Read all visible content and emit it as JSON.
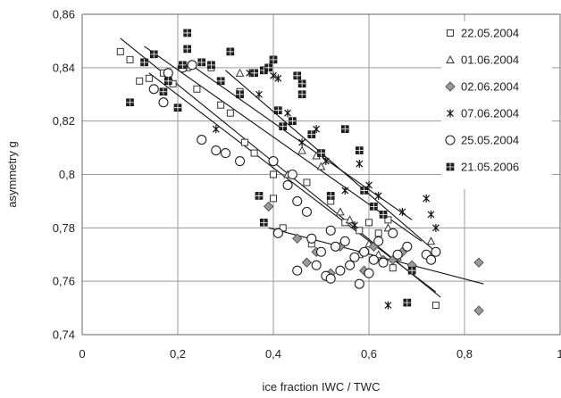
{
  "chart_data": {
    "type": "scatter",
    "xlabel": "ice fraction IWC / TWC",
    "ylabel": "asymmetry g",
    "xlim": [
      0,
      1
    ],
    "ylim": [
      0.74,
      0.86
    ],
    "x_ticks": [
      "0",
      "0,2",
      "0,4",
      "0,6",
      "0,8",
      "1"
    ],
    "y_ticks": [
      "0,74",
      "0,76",
      "0,78",
      "0,8",
      "0,82",
      "0,84",
      "0,86"
    ],
    "grid": true,
    "legend_position": "top-right",
    "series": [
      {
        "name": "22.05.2004",
        "marker": "open-square",
        "points": [
          [
            0.08,
            0.846
          ],
          [
            0.1,
            0.843
          ],
          [
            0.12,
            0.835
          ],
          [
            0.14,
            0.836
          ],
          [
            0.17,
            0.838
          ],
          [
            0.19,
            0.834
          ],
          [
            0.22,
            0.84
          ],
          [
            0.24,
            0.832
          ],
          [
            0.27,
            0.84
          ],
          [
            0.29,
            0.826
          ],
          [
            0.31,
            0.823
          ],
          [
            0.33,
            0.831
          ],
          [
            0.34,
            0.812
          ],
          [
            0.36,
            0.808
          ],
          [
            0.4,
            0.8
          ],
          [
            0.4,
            0.791
          ],
          [
            0.42,
            0.78
          ],
          [
            0.47,
            0.797
          ],
          [
            0.48,
            0.774
          ],
          [
            0.52,
            0.79
          ],
          [
            0.55,
            0.782
          ],
          [
            0.58,
            0.779
          ],
          [
            0.6,
            0.782
          ],
          [
            0.62,
            0.778
          ],
          [
            0.64,
            0.783
          ],
          [
            0.65,
            0.765
          ],
          [
            0.74,
            0.751
          ]
        ],
        "trend": [
          [
            0.08,
            0.851
          ],
          [
            0.75,
            0.754
          ]
        ]
      },
      {
        "name": "01.06.2004",
        "marker": "open-triangle",
        "points": [
          [
            0.33,
            0.838
          ],
          [
            0.43,
            0.8
          ],
          [
            0.46,
            0.809
          ],
          [
            0.49,
            0.807
          ],
          [
            0.5,
            0.803
          ],
          [
            0.54,
            0.786
          ],
          [
            0.56,
            0.783
          ],
          [
            0.58,
            0.77
          ],
          [
            0.6,
            0.774
          ],
          [
            0.62,
            0.77
          ],
          [
            0.64,
            0.78
          ],
          [
            0.66,
            0.769
          ],
          [
            0.73,
            0.775
          ]
        ],
        "trend": [
          [
            0.3,
            0.839
          ],
          [
            0.74,
            0.771
          ]
        ]
      },
      {
        "name": "02.06.2004",
        "marker": "filled-diamond",
        "points": [
          [
            0.39,
            0.788
          ],
          [
            0.45,
            0.776
          ],
          [
            0.47,
            0.767
          ],
          [
            0.49,
            0.771
          ],
          [
            0.52,
            0.763
          ],
          [
            0.54,
            0.773
          ],
          [
            0.56,
            0.766
          ],
          [
            0.59,
            0.764
          ],
          [
            0.61,
            0.773
          ],
          [
            0.63,
            0.768
          ],
          [
            0.65,
            0.768
          ],
          [
            0.67,
            0.771
          ],
          [
            0.69,
            0.766
          ],
          [
            0.83,
            0.767
          ],
          [
            0.83,
            0.749
          ]
        ],
        "trend": [
          [
            0.39,
            0.78
          ],
          [
            0.84,
            0.759
          ]
        ]
      },
      {
        "name": "07.06.2004",
        "marker": "star",
        "points": [
          [
            0.28,
            0.817
          ],
          [
            0.35,
            0.838
          ],
          [
            0.37,
            0.83
          ],
          [
            0.4,
            0.837
          ],
          [
            0.41,
            0.836
          ],
          [
            0.43,
            0.823
          ],
          [
            0.46,
            0.812
          ],
          [
            0.49,
            0.817
          ],
          [
            0.51,
            0.805
          ],
          [
            0.55,
            0.794
          ],
          [
            0.57,
            0.781
          ],
          [
            0.58,
            0.804
          ],
          [
            0.6,
            0.796
          ],
          [
            0.62,
            0.792
          ],
          [
            0.64,
            0.751
          ],
          [
            0.67,
            0.786
          ],
          [
            0.72,
            0.791
          ],
          [
            0.73,
            0.785
          ],
          [
            0.74,
            0.78
          ]
        ],
        "trend": [
          [
            0.22,
            0.842
          ],
          [
            0.69,
            0.783
          ]
        ]
      },
      {
        "name": "25.05.2004",
        "marker": "open-circle",
        "points": [
          [
            0.15,
            0.832
          ],
          [
            0.17,
            0.827
          ],
          [
            0.18,
            0.838
          ],
          [
            0.21,
            0.84
          ],
          [
            0.23,
            0.841
          ],
          [
            0.25,
            0.813
          ],
          [
            0.28,
            0.809
          ],
          [
            0.3,
            0.808
          ],
          [
            0.33,
            0.805
          ],
          [
            0.4,
            0.805
          ],
          [
            0.41,
            0.778
          ],
          [
            0.43,
            0.796
          ],
          [
            0.44,
            0.8
          ],
          [
            0.45,
            0.79
          ],
          [
            0.45,
            0.764
          ],
          [
            0.47,
            0.786
          ],
          [
            0.48,
            0.776
          ],
          [
            0.49,
            0.766
          ],
          [
            0.5,
            0.771
          ],
          [
            0.51,
            0.762
          ],
          [
            0.52,
            0.779
          ],
          [
            0.52,
            0.761
          ],
          [
            0.53,
            0.773
          ],
          [
            0.54,
            0.764
          ],
          [
            0.55,
            0.775
          ],
          [
            0.56,
            0.766
          ],
          [
            0.57,
            0.769
          ],
          [
            0.58,
            0.759
          ],
          [
            0.59,
            0.771
          ],
          [
            0.6,
            0.763
          ],
          [
            0.61,
            0.768
          ],
          [
            0.62,
            0.775
          ],
          [
            0.63,
            0.767
          ],
          [
            0.65,
            0.778
          ],
          [
            0.66,
            0.77
          ],
          [
            0.68,
            0.773
          ],
          [
            0.72,
            0.77
          ],
          [
            0.73,
            0.768
          ],
          [
            0.74,
            0.771
          ]
        ],
        "trend": [
          [
            0.14,
            0.838
          ],
          [
            0.74,
            0.756
          ]
        ]
      },
      {
        "name": "21.05.2006",
        "marker": "filled-square",
        "points": [
          [
            0.1,
            0.827
          ],
          [
            0.13,
            0.842
          ],
          [
            0.15,
            0.845
          ],
          [
            0.17,
            0.831
          ],
          [
            0.18,
            0.835
          ],
          [
            0.2,
            0.825
          ],
          [
            0.21,
            0.841
          ],
          [
            0.22,
            0.853
          ],
          [
            0.22,
            0.847
          ],
          [
            0.25,
            0.842
          ],
          [
            0.27,
            0.841
          ],
          [
            0.29,
            0.835
          ],
          [
            0.31,
            0.846
          ],
          [
            0.33,
            0.83
          ],
          [
            0.36,
            0.838
          ],
          [
            0.38,
            0.839
          ],
          [
            0.39,
            0.84
          ],
          [
            0.4,
            0.843
          ],
          [
            0.41,
            0.824
          ],
          [
            0.42,
            0.818
          ],
          [
            0.44,
            0.82
          ],
          [
            0.45,
            0.837
          ],
          [
            0.46,
            0.834
          ],
          [
            0.46,
            0.83
          ],
          [
            0.48,
            0.815
          ],
          [
            0.5,
            0.808
          ],
          [
            0.52,
            0.792
          ],
          [
            0.55,
            0.817
          ],
          [
            0.58,
            0.809
          ],
          [
            0.59,
            0.794
          ],
          [
            0.61,
            0.788
          ],
          [
            0.63,
            0.785
          ],
          [
            0.37,
            0.792
          ],
          [
            0.38,
            0.782
          ],
          [
            0.68,
            0.752
          ],
          [
            0.69,
            0.764
          ]
        ],
        "trend": [
          [
            0.13,
            0.848
          ],
          [
            0.71,
            0.775
          ]
        ]
      }
    ]
  }
}
